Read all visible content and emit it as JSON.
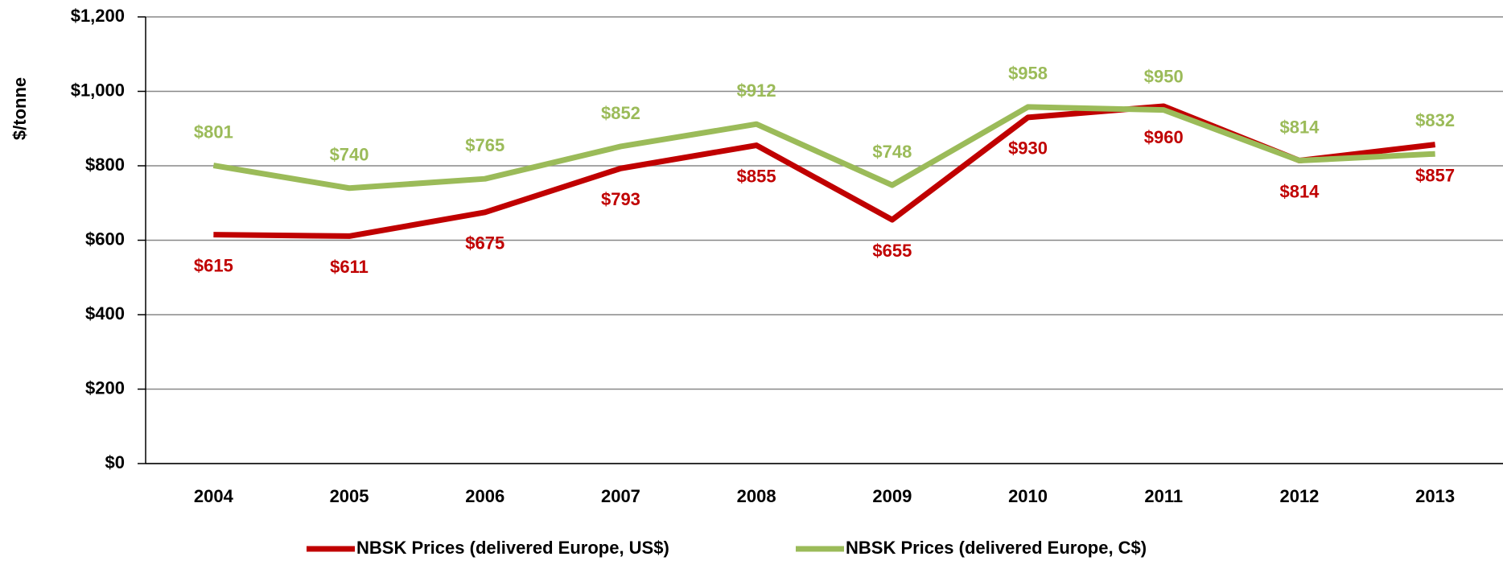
{
  "chart_data": {
    "type": "line",
    "y_label": "$/tonne",
    "categories": [
      "2004",
      "2005",
      "2006",
      "2007",
      "2008",
      "2009",
      "2010",
      "2011",
      "2012",
      "2013"
    ],
    "series": [
      {
        "name": "NBSK Prices (delivered Europe, US$)",
        "color": "#c00000",
        "values": [
          615,
          611,
          675,
          793,
          855,
          655,
          930,
          960,
          814,
          857
        ],
        "value_labels": [
          "$615",
          "$611",
          "$675",
          "$793",
          "$855",
          "$655",
          "$930",
          "$960",
          "$814",
          "$857"
        ]
      },
      {
        "name": "NBSK Prices (delivered Europe, C$)",
        "color": "#9bbb59",
        "values": [
          801,
          740,
          765,
          852,
          912,
          748,
          958,
          950,
          814,
          832
        ],
        "value_labels": [
          "$801",
          "$740",
          "$765",
          "$852",
          "$912",
          "$748",
          "$958",
          "$950",
          "$814",
          "$832"
        ]
      }
    ],
    "ylim": [
      0,
      1200
    ],
    "yticks": [
      {
        "value": 0,
        "label": "$0"
      },
      {
        "value": 200,
        "label": "$200"
      },
      {
        "value": 400,
        "label": "$400"
      },
      {
        "value": 600,
        "label": "$600"
      },
      {
        "value": 800,
        "label": "$800"
      },
      {
        "value": 1000,
        "label": "$1,000"
      },
      {
        "value": 1200,
        "label": "$1,200"
      }
    ],
    "grid": true,
    "legend": "bottom"
  }
}
